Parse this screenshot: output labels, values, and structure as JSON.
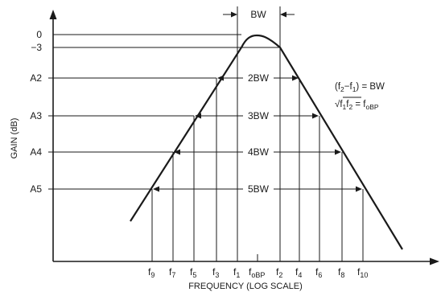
{
  "axes": {
    "y_label": "GAIN (dB)",
    "x_label": "FREQUENCY (LOG SCALE)",
    "y_ticks": [
      "0",
      "−3",
      "A2",
      "A3",
      "A4",
      "A5"
    ]
  },
  "bandwidths": {
    "top": "BW",
    "levels": [
      "2BW",
      "3BW",
      "4BW",
      "5BW"
    ]
  },
  "frequencies": {
    "left": [
      {
        "base": "f",
        "sub": "9"
      },
      {
        "base": "f",
        "sub": "7"
      },
      {
        "base": "f",
        "sub": "5"
      },
      {
        "base": "f",
        "sub": "3"
      },
      {
        "base": "f",
        "sub": "1"
      }
    ],
    "center": {
      "base": "f",
      "sub": "oBP"
    },
    "right": [
      {
        "base": "f",
        "sub": "2"
      },
      {
        "base": "f",
        "sub": "4"
      },
      {
        "base": "f",
        "sub": "6"
      },
      {
        "base": "f",
        "sub": "8"
      },
      {
        "base": "f",
        "sub": "10"
      }
    ]
  },
  "equations": {
    "bw": {
      "open": "(f",
      "s2": "2",
      "minus": "−f",
      "s1": "1",
      "close": ") = BW"
    },
    "center": {
      "root": "√",
      "f1": "f",
      "s1": "1",
      "f2": "f",
      "s2": "2",
      "eq": " = f",
      "s3": "oBP"
    }
  }
}
